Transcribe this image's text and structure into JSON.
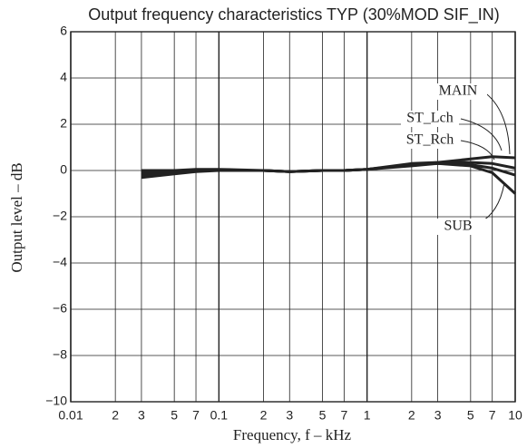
{
  "chart_data": {
    "type": "line",
    "title": "Output frequency characteristics TYP (30%MOD SIF_IN)",
    "x_label": "Frequency, f  –  kHz",
    "y_label": "Output level  –  dB",
    "xscale": "log",
    "grid": true,
    "color": "#222222",
    "xlim": [
      0.01,
      10
    ],
    "ylim": [
      -10,
      6
    ],
    "xticks": [
      0.01,
      {
        "value": 0.02,
        "label": "2"
      },
      {
        "value": 0.03,
        "label": "3"
      },
      {
        "value": 0.05,
        "label": "5"
      },
      {
        "value": 0.07,
        "label": "7"
      },
      0.1,
      {
        "value": 0.2,
        "label": "2"
      },
      {
        "value": 0.3,
        "label": "3"
      },
      {
        "value": 0.5,
        "label": "5"
      },
      {
        "value": 0.7,
        "label": "7"
      },
      1,
      {
        "value": 2,
        "label": "2"
      },
      {
        "value": 3,
        "label": "3"
      },
      {
        "value": 5,
        "label": "5"
      },
      {
        "value": 7,
        "label": "7"
      },
      10
    ],
    "yticks": [
      {
        "value": -10,
        "label": "−10"
      },
      {
        "value": -8,
        "label": "−8"
      },
      {
        "value": -6,
        "label": "−6"
      },
      {
        "value": -4,
        "label": "−4"
      },
      {
        "value": -2,
        "label": "−2"
      },
      0,
      2,
      4,
      6
    ],
    "x": [
      0.03,
      0.05,
      0.07,
      0.1,
      0.2,
      0.3,
      0.5,
      0.7,
      1,
      2,
      3,
      5,
      7,
      10
    ],
    "series": [
      {
        "name": "MAIN",
        "values": [
          0,
          0,
          0.05,
          0.05,
          0,
          -0.05,
          0,
          0,
          0.05,
          0.3,
          0.35,
          0.5,
          0.6,
          0.55
        ]
      },
      {
        "name": "ST_Lch",
        "values": [
          -0.1,
          -0.05,
          0,
          0,
          0,
          -0.05,
          0,
          0,
          0.05,
          0.25,
          0.35,
          0.35,
          0.3,
          0.1
        ]
      },
      {
        "name": "ST_Rch",
        "values": [
          -0.2,
          -0.1,
          0,
          0,
          0,
          -0.05,
          0,
          0,
          0.05,
          0.25,
          0.3,
          0.25,
          0.1,
          -0.2
        ]
      },
      {
        "name": "SUB",
        "values": [
          -0.3,
          -0.15,
          -0.05,
          0,
          0,
          -0.05,
          0,
          0,
          0.05,
          0.2,
          0.3,
          0.2,
          -0.1,
          -1.0
        ]
      }
    ]
  }
}
